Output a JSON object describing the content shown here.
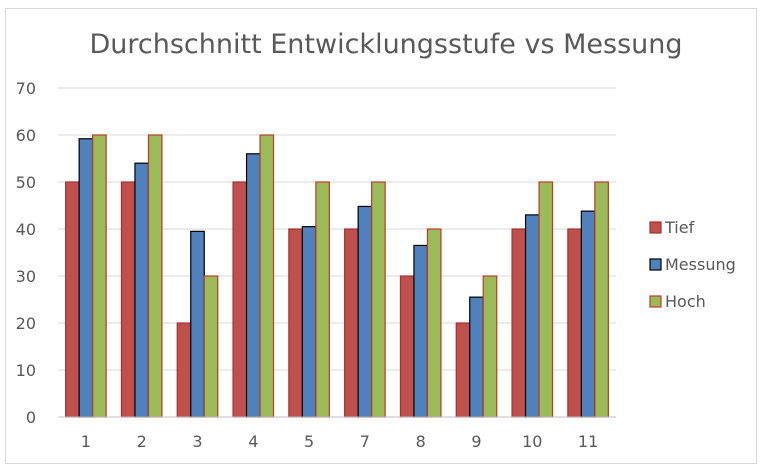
{
  "chart_data": {
    "type": "bar",
    "title": "Durchschnitt Entwicklungsstufe vs Messung",
    "categories": [
      "1",
      "2",
      "3",
      "4",
      "5",
      "7",
      "8",
      "9",
      "10",
      "11"
    ],
    "series": [
      {
        "name": "Tief",
        "values": [
          50,
          50,
          20,
          50,
          40,
          40,
          30,
          20,
          40,
          40
        ]
      },
      {
        "name": "Messung",
        "values": [
          59.2,
          54,
          39.5,
          56,
          40.5,
          44.8,
          36.5,
          25.5,
          43,
          43.8
        ]
      },
      {
        "name": "Hoch",
        "values": [
          60,
          60,
          30,
          60,
          50,
          50,
          40,
          30,
          50,
          50
        ]
      }
    ],
    "yticks": [
      "0",
      "10",
      "20",
      "30",
      "40",
      "50",
      "60",
      "70"
    ],
    "ylim": [
      0,
      70
    ],
    "xlabel": "",
    "ylabel": "",
    "grid": true,
    "legend_position": "right",
    "colors": {
      "Tief": {
        "fill": "#c0504d",
        "stroke": "#a5312e"
      },
      "Messung": {
        "fill": "#4f81bd",
        "stroke": "#000000"
      },
      "Hoch": {
        "fill": "#9bbb59",
        "stroke": "#c0392b"
      },
      "grid": "#d9d9d9",
      "axis": "#bfbfbf",
      "text": "#595959"
    }
  }
}
